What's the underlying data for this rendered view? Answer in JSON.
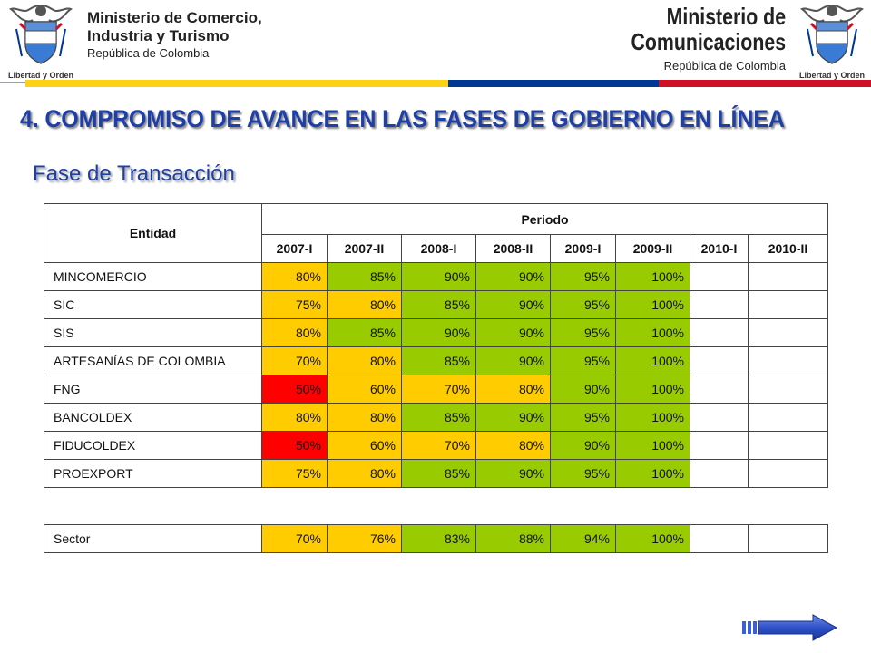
{
  "header": {
    "left_org": {
      "line1": "Ministerio de Comercio,",
      "line2": "Industria y Turismo",
      "line3": "República de Colombia"
    },
    "right_org": {
      "line1": "Ministerio de",
      "line2": "Comunicaciones",
      "line3": "República de Colombia"
    },
    "crest_motto": "Libertad y Orden",
    "colors": {
      "yellow": "#fcd116",
      "blue": "#003893",
      "red": "#ce1126"
    }
  },
  "title": "4. COMPROMISO DE AVANCE EN LAS FASES DE GOBIERNO EN LÍNEA",
  "subtitle": "Fase de Transacción",
  "table": {
    "entity_header": "Entidad",
    "period_header": "Periodo",
    "periods": [
      "2007-I",
      "2007-II",
      "2008-I",
      "2008-II",
      "2009-I",
      "2009-II",
      "2010-I",
      "2010-II"
    ],
    "rows": [
      {
        "name": "MINCOMERCIO",
        "values": [
          "80%",
          "85%",
          "90%",
          "90%",
          "95%",
          "100%",
          "",
          ""
        ],
        "colors": [
          "yellow",
          "green",
          "green",
          "green",
          "green",
          "green",
          "empty",
          "empty"
        ]
      },
      {
        "name": "SIC",
        "values": [
          "75%",
          "80%",
          "85%",
          "90%",
          "95%",
          "100%",
          "",
          ""
        ],
        "colors": [
          "yellow",
          "yellow",
          "green",
          "green",
          "green",
          "green",
          "empty",
          "empty"
        ]
      },
      {
        "name": "SIS",
        "values": [
          "80%",
          "85%",
          "90%",
          "90%",
          "95%",
          "100%",
          "",
          ""
        ],
        "colors": [
          "yellow",
          "green",
          "green",
          "green",
          "green",
          "green",
          "empty",
          "empty"
        ]
      },
      {
        "name": "ARTESANÍAS DE COLOMBIA",
        "values": [
          "70%",
          "80%",
          "85%",
          "90%",
          "95%",
          "100%",
          "",
          ""
        ],
        "colors": [
          "yellow",
          "yellow",
          "green",
          "green",
          "green",
          "green",
          "empty",
          "empty"
        ]
      },
      {
        "name": "FNG",
        "values": [
          "50%",
          "60%",
          "70%",
          "80%",
          "90%",
          "100%",
          "",
          ""
        ],
        "colors": [
          "red",
          "yellow",
          "yellow",
          "yellow",
          "green",
          "green",
          "empty",
          "empty"
        ]
      },
      {
        "name": "BANCOLDEX",
        "values": [
          "80%",
          "80%",
          "85%",
          "90%",
          "95%",
          "100%",
          "",
          ""
        ],
        "colors": [
          "yellow",
          "yellow",
          "green",
          "green",
          "green",
          "green",
          "empty",
          "empty"
        ]
      },
      {
        "name": "FIDUCOLDEX",
        "values": [
          "50%",
          "60%",
          "70%",
          "80%",
          "90%",
          "100%",
          "",
          ""
        ],
        "colors": [
          "red",
          "yellow",
          "yellow",
          "yellow",
          "green",
          "green",
          "empty",
          "empty"
        ]
      },
      {
        "name": "PROEXPORT",
        "values": [
          "75%",
          "80%",
          "85%",
          "90%",
          "95%",
          "100%",
          "",
          ""
        ],
        "colors": [
          "yellow",
          "yellow",
          "green",
          "green",
          "green",
          "green",
          "empty",
          "empty"
        ]
      }
    ]
  },
  "sector": {
    "name": "Sector",
    "values": [
      "70%",
      "76%",
      "83%",
      "88%",
      "94%",
      "100%",
      "",
      ""
    ],
    "colors": [
      "yellow",
      "yellow",
      "green",
      "green",
      "green",
      "green",
      "empty",
      "empty"
    ]
  },
  "navigation": {
    "next_icon": "arrow-right-icon"
  }
}
